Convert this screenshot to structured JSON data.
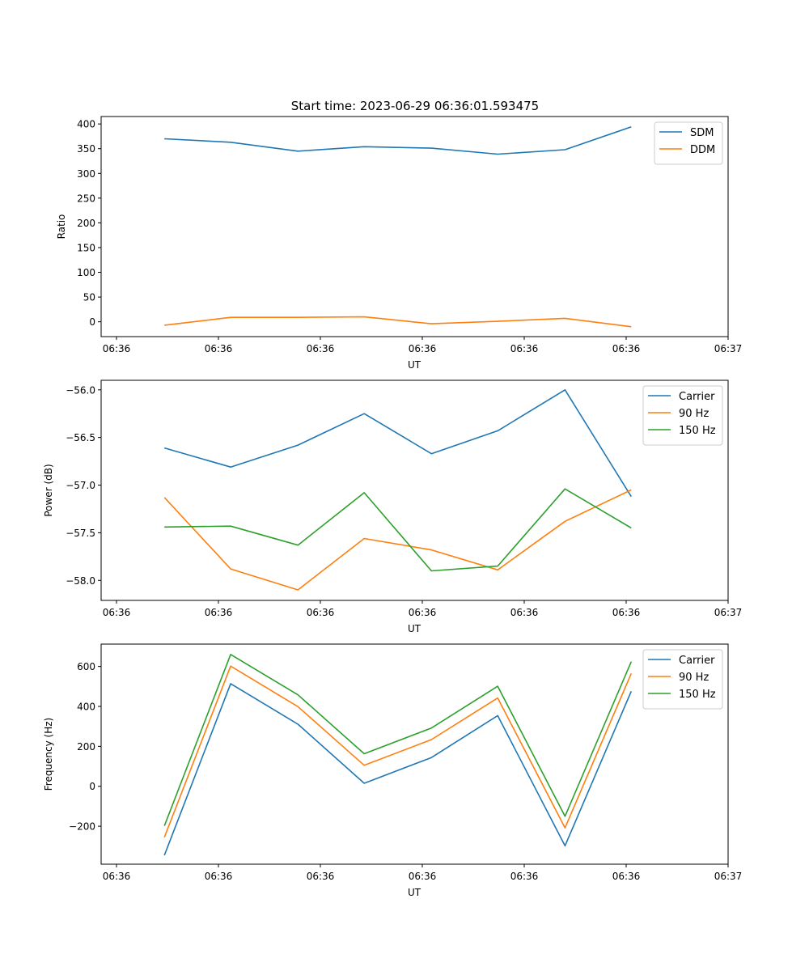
{
  "figure": {
    "title": "Start time: 2023-06-29 06:36:01.593475"
  },
  "chart_data": [
    {
      "type": "line",
      "title": "Start time: 2023-06-29 06:36:01.593475",
      "xlabel": "UT",
      "ylabel": "Ratio",
      "x_tick_labels": [
        "06:36",
        "06:36",
        "06:36",
        "06:36",
        "06:36",
        "06:36",
        "06:37"
      ],
      "xlim": [
        0,
        6
      ],
      "ylim": [
        -30,
        415
      ],
      "y_ticks": [
        0,
        50,
        100,
        150,
        200,
        250,
        300,
        350,
        400
      ],
      "y_tick_labels": [
        "0",
        "50",
        "100",
        "150",
        "200",
        "250",
        "300",
        "350",
        "400"
      ],
      "grid": false,
      "legend": "top-right",
      "x": [
        0.47,
        1.12,
        1.78,
        2.43,
        3.09,
        3.74,
        4.4,
        5.05
      ],
      "series": [
        {
          "name": "SDM",
          "color": "#1f77b4",
          "values": [
            370,
            363,
            345,
            354,
            351,
            339,
            348,
            394
          ]
        },
        {
          "name": "DDM",
          "color": "#ff7f0e",
          "values": [
            -7,
            9,
            9,
            10,
            -4,
            1,
            7,
            -10
          ]
        }
      ]
    },
    {
      "type": "line",
      "xlabel": "UT",
      "ylabel": "Power (dB)",
      "x_tick_labels": [
        "06:36",
        "06:36",
        "06:36",
        "06:36",
        "06:36",
        "06:36",
        "06:37"
      ],
      "xlim": [
        0,
        6
      ],
      "ylim": [
        -58.21,
        -55.9
      ],
      "y_ticks": [
        -58.0,
        -57.5,
        -57.0,
        -56.5,
        -56.0
      ],
      "y_tick_labels": [
        "−58.0",
        "−57.5",
        "−57.0",
        "−56.5",
        "−56.0"
      ],
      "grid": false,
      "legend": "top-right",
      "x": [
        0.47,
        1.12,
        1.78,
        2.43,
        3.09,
        3.74,
        4.4,
        5.05
      ],
      "series": [
        {
          "name": "Carrier",
          "color": "#1f77b4",
          "values": [
            -56.61,
            -56.81,
            -56.58,
            -56.25,
            -56.67,
            -56.43,
            -56.0,
            -57.12
          ]
        },
        {
          "name": "90 Hz",
          "color": "#ff7f0e",
          "values": [
            -57.13,
            -57.88,
            -58.1,
            -57.56,
            -57.68,
            -57.89,
            -57.38,
            -57.05
          ]
        },
        {
          "name": "150 Hz",
          "color": "#2ca02c",
          "values": [
            -57.44,
            -57.43,
            -57.63,
            -57.08,
            -57.9,
            -57.85,
            -57.04,
            -57.45
          ]
        }
      ]
    },
    {
      "type": "line",
      "xlabel": "UT",
      "ylabel": "Frequency (Hz)",
      "x_tick_labels": [
        "06:36",
        "06:36",
        "06:36",
        "06:36",
        "06:36",
        "06:36",
        "06:37"
      ],
      "xlim": [
        0,
        6
      ],
      "ylim": [
        -390,
        712
      ],
      "y_ticks": [
        -200,
        0,
        200,
        400,
        600
      ],
      "y_tick_labels": [
        "−200",
        "0",
        "200",
        "400",
        "600"
      ],
      "grid": false,
      "legend": "top-right",
      "x": [
        0.47,
        1.12,
        1.78,
        2.43,
        3.09,
        3.74,
        4.4,
        5.05
      ],
      "series": [
        {
          "name": "Carrier",
          "color": "#1f77b4",
          "values": [
            -345,
            514,
            311,
            15,
            144,
            354,
            -298,
            476
          ]
        },
        {
          "name": "90 Hz",
          "color": "#ff7f0e",
          "values": [
            -255,
            602,
            399,
            105,
            234,
            442,
            -208,
            565
          ]
        },
        {
          "name": "150 Hz",
          "color": "#2ca02c",
          "values": [
            -198,
            660,
            458,
            163,
            292,
            501,
            -150,
            624
          ]
        }
      ]
    }
  ]
}
